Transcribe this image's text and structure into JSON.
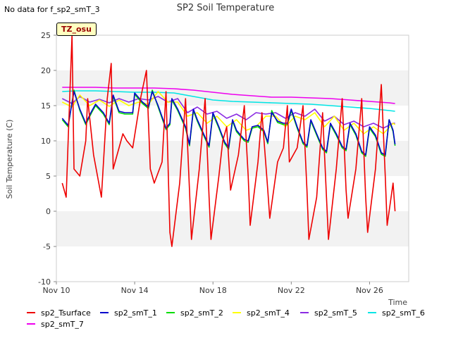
{
  "no_data_note": "No data for f_sp2_smT_3",
  "site_badge": "TZ_osu",
  "chart_data": {
    "type": "line",
    "title": "SP2 Soil Temperature",
    "xlabel": "Time",
    "ylabel": "Soil Temperature (C)",
    "xlim": [
      10.0,
      28.0
    ],
    "ylim": [
      -10,
      25
    ],
    "x_ticks": [
      {
        "value": 10,
        "label": "Nov 10"
      },
      {
        "value": 14,
        "label": "Nov 14"
      },
      {
        "value": 18,
        "label": "Nov 18"
      },
      {
        "value": 22,
        "label": "Nov 22"
      },
      {
        "value": 26,
        "label": "Nov 26"
      }
    ],
    "y_ticks": [
      -10,
      -5,
      0,
      5,
      10,
      15,
      20,
      25
    ],
    "grid": "horizontal bands",
    "legend_position": "bottom",
    "series": [
      {
        "name": "sp2_Tsurface",
        "color": "#ee0000",
        "x": [
          10.3,
          10.5,
          10.6,
          10.8,
          10.9,
          11.2,
          11.5,
          11.6,
          11.9,
          12.3,
          12.6,
          12.8,
          12.9,
          13.2,
          13.4,
          13.6,
          13.9,
          14.3,
          14.6,
          14.8,
          15.0,
          15.4,
          15.6,
          15.8,
          15.9,
          16.3,
          16.6,
          16.8,
          16.9,
          17.3,
          17.6,
          17.8,
          17.9,
          18.3,
          18.5,
          18.7,
          18.9,
          19.3,
          19.6,
          19.8,
          19.9,
          20.3,
          20.5,
          20.8,
          20.9,
          21.3,
          21.6,
          21.8,
          21.9,
          22.3,
          22.6,
          22.8,
          22.9,
          23.3,
          23.6,
          23.8,
          23.9,
          24.3,
          24.6,
          24.8,
          24.9,
          25.3,
          25.6,
          25.8,
          25.9,
          26.3,
          26.6,
          26.8,
          26.9,
          27.2,
          27.3
        ],
        "y": [
          4,
          2,
          10,
          25,
          6,
          5,
          10,
          16,
          8,
          2,
          16,
          21,
          6,
          9,
          11,
          10,
          9,
          16,
          20,
          6,
          4,
          7,
          17,
          -3,
          -5,
          4,
          16,
          3,
          -4,
          6,
          16,
          2,
          -4,
          5,
          10,
          12,
          3,
          8,
          15,
          5,
          -2,
          7,
          14,
          3,
          -1,
          7,
          9,
          15,
          7,
          9,
          15,
          3,
          -4,
          2,
          14,
          2,
          -4,
          6,
          16,
          3,
          -1,
          6,
          16,
          2,
          -3,
          6,
          18,
          5,
          -2,
          4,
          0
        ]
      },
      {
        "name": "sp2_smT_1",
        "color": "#0000cc",
        "x": [
          10.3,
          10.6,
          10.9,
          11.2,
          11.5,
          11.8,
          12.0,
          12.4,
          12.7,
          12.9,
          13.2,
          13.5,
          13.9,
          14.0,
          14.4,
          14.7,
          14.9,
          15.2,
          15.6,
          15.8,
          15.9,
          16.2,
          16.6,
          16.8,
          17.0,
          17.2,
          17.6,
          17.8,
          18.0,
          18.3,
          18.6,
          18.8,
          19.0,
          19.2,
          19.6,
          19.8,
          20.0,
          20.3,
          20.6,
          20.8,
          21.0,
          21.3,
          21.6,
          21.8,
          22.0,
          22.3,
          22.6,
          22.8,
          23.0,
          23.3,
          23.6,
          23.8,
          24.0,
          24.3,
          24.6,
          24.8,
          25.0,
          25.3,
          25.6,
          25.8,
          26.0,
          26.3,
          26.6,
          26.8,
          27.0,
          27.2,
          27.3
        ],
        "y": [
          13.2,
          12.2,
          17.0,
          14.5,
          12.5,
          14.2,
          15.2,
          14.0,
          12.5,
          16.5,
          14.2,
          14.0,
          14.0,
          16.8,
          15.5,
          14.8,
          17.0,
          15.0,
          11.8,
          12.5,
          16.0,
          14.5,
          12.0,
          9.5,
          14.5,
          13.0,
          10.5,
          9.3,
          14.0,
          12.0,
          9.8,
          9.0,
          13.0,
          11.5,
          10.2,
          10.0,
          12.0,
          12.2,
          11.5,
          9.8,
          14.0,
          12.8,
          12.5,
          12.5,
          14.5,
          12.0,
          9.8,
          9.3,
          13.0,
          11.0,
          9.0,
          8.5,
          12.5,
          11.0,
          9.2,
          8.8,
          12.5,
          11.0,
          8.5,
          8.0,
          12.0,
          10.8,
          8.3,
          8.0,
          13.0,
          11.5,
          9.5
        ]
      },
      {
        "name": "sp2_smT_2",
        "color": "#00dd00",
        "x": [
          10.3,
          10.6,
          10.9,
          11.2,
          11.5,
          11.8,
          12.0,
          12.4,
          12.7,
          12.9,
          13.2,
          13.5,
          13.9,
          14.0,
          14.4,
          14.7,
          14.9,
          15.2,
          15.6,
          15.8,
          15.9,
          16.2,
          16.6,
          16.8,
          17.0,
          17.2,
          17.6,
          17.8,
          18.0,
          18.3,
          18.6,
          18.8,
          19.0,
          19.2,
          19.6,
          19.8,
          20.0,
          20.3,
          20.6,
          20.8,
          21.0,
          21.3,
          21.6,
          21.8,
          22.0,
          22.3,
          22.6,
          22.8,
          23.0,
          23.3,
          23.6,
          23.8,
          24.0,
          24.3,
          24.6,
          24.8,
          25.0,
          25.3,
          25.6,
          25.8,
          26.0,
          26.3,
          26.6,
          26.8,
          27.0,
          27.2,
          27.3
        ],
        "y": [
          13.0,
          12.0,
          17.2,
          14.3,
          12.3,
          14.0,
          15.0,
          13.8,
          12.3,
          16.3,
          14.0,
          13.8,
          13.8,
          16.6,
          15.3,
          14.6,
          17.2,
          14.8,
          11.6,
          12.3,
          15.8,
          14.3,
          11.8,
          9.3,
          14.3,
          12.8,
          10.3,
          9.1,
          13.8,
          11.8,
          9.6,
          8.8,
          12.8,
          11.3,
          10.0,
          9.8,
          11.8,
          12.0,
          11.3,
          9.6,
          14.3,
          12.6,
          12.3,
          12.3,
          14.3,
          11.8,
          9.6,
          9.1,
          12.8,
          10.8,
          8.8,
          8.3,
          12.3,
          10.8,
          9.0,
          8.6,
          12.3,
          10.8,
          8.3,
          7.8,
          11.8,
          10.6,
          8.1,
          7.8,
          13.0,
          11.3,
          9.3
        ]
      },
      {
        "name": "sp2_smT_4",
        "color": "#ffff00",
        "x": [
          10.3,
          10.8,
          11.2,
          11.7,
          12.2,
          12.7,
          13.2,
          13.7,
          14.2,
          14.7,
          15.2,
          15.7,
          16.2,
          16.7,
          17.2,
          17.7,
          18.2,
          18.7,
          19.2,
          19.7,
          20.2,
          20.7,
          21.2,
          21.7,
          22.2,
          22.7,
          23.2,
          23.7,
          24.2,
          24.7,
          25.2,
          25.7,
          26.2,
          26.7,
          27.2,
          27.3
        ],
        "y": [
          15.5,
          14.8,
          16.5,
          15.0,
          15.8,
          14.9,
          15.8,
          15.0,
          15.5,
          15.2,
          17.0,
          15.5,
          15.5,
          13.5,
          14.0,
          12.5,
          13.5,
          12.0,
          13.0,
          11.5,
          12.0,
          13.5,
          13.5,
          12.0,
          13.5,
          13.0,
          14.0,
          12.0,
          13.5,
          11.5,
          12.5,
          11.0,
          12.0,
          11.0,
          12.5,
          12.3
        ]
      },
      {
        "name": "sp2_smT_5",
        "color": "#8a2be2",
        "x": [
          10.3,
          10.8,
          11.2,
          11.7,
          12.2,
          12.7,
          13.2,
          13.7,
          14.2,
          14.7,
          15.2,
          15.7,
          16.2,
          16.7,
          17.2,
          17.7,
          18.2,
          18.7,
          19.2,
          19.7,
          20.2,
          20.7,
          21.2,
          21.7,
          22.2,
          22.7,
          23.2,
          23.7,
          24.2,
          24.7,
          25.2,
          25.7,
          26.2,
          26.7,
          27.2,
          27.3
        ],
        "y": [
          16.0,
          15.3,
          16.3,
          15.5,
          15.9,
          15.4,
          16.0,
          15.5,
          16.0,
          15.8,
          16.3,
          15.5,
          16.0,
          14.0,
          14.8,
          13.8,
          14.2,
          13.2,
          13.8,
          13.0,
          14.0,
          13.8,
          14.0,
          13.2,
          14.0,
          13.5,
          14.5,
          12.8,
          13.5,
          12.3,
          12.8,
          12.0,
          12.5,
          11.8,
          12.5,
          12.5
        ]
      },
      {
        "name": "sp2_smT_6",
        "color": "#00e5e5",
        "x": [
          10.3,
          11.0,
          12.0,
          13.0,
          14.0,
          15.0,
          16.0,
          17.0,
          18.0,
          19.0,
          20.0,
          21.0,
          22.0,
          23.0,
          24.0,
          25.0,
          26.0,
          27.0,
          27.3
        ],
        "y": [
          17.0,
          17.1,
          17.1,
          17.0,
          16.9,
          16.9,
          16.8,
          16.3,
          15.8,
          15.6,
          15.5,
          15.4,
          15.3,
          15.2,
          15.0,
          14.8,
          14.6,
          14.3,
          14.2
        ]
      },
      {
        "name": "sp2_smT_7",
        "color": "#ee00ee",
        "x": [
          10.3,
          11.0,
          12.0,
          13.0,
          14.0,
          15.0,
          16.0,
          17.0,
          18.0,
          19.0,
          20.0,
          21.0,
          22.0,
          23.0,
          24.0,
          25.0,
          26.0,
          27.0,
          27.3
        ],
        "y": [
          17.6,
          17.6,
          17.6,
          17.5,
          17.5,
          17.5,
          17.4,
          17.2,
          16.9,
          16.6,
          16.4,
          16.2,
          16.2,
          16.1,
          16.0,
          15.8,
          15.6,
          15.4,
          15.3
        ]
      }
    ]
  }
}
